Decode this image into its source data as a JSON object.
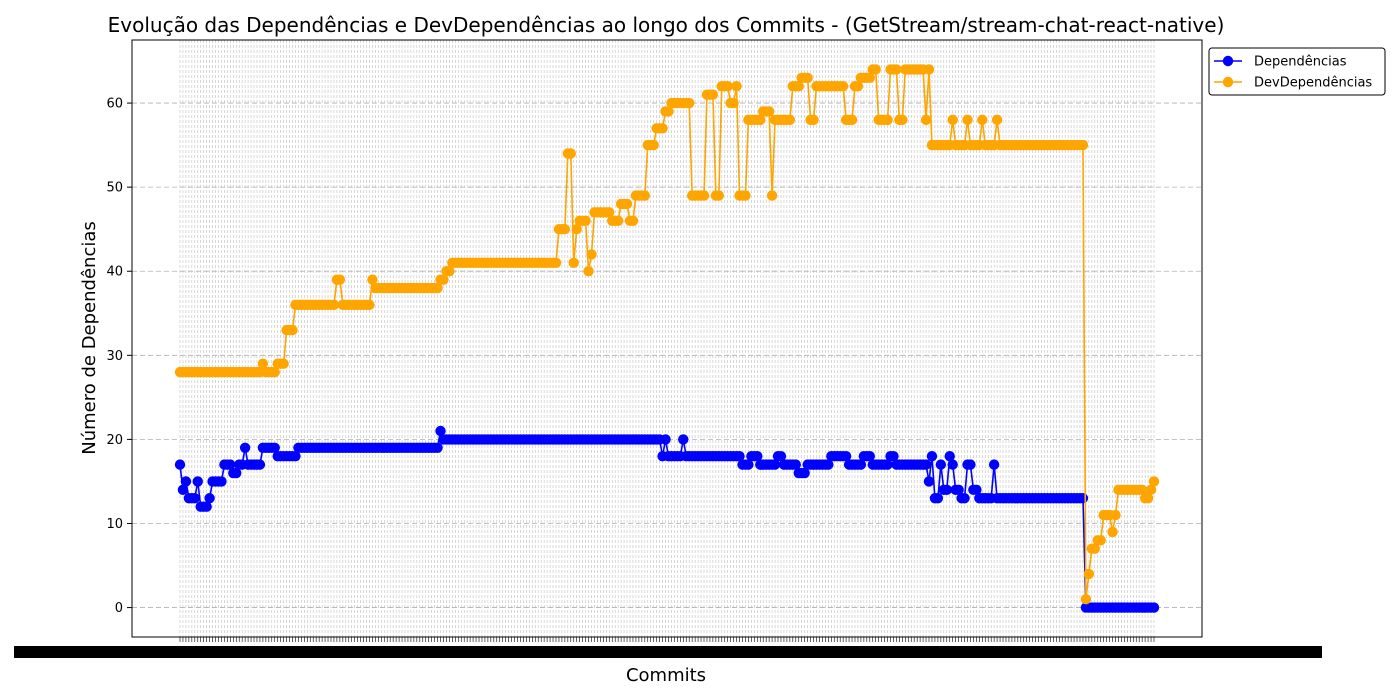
{
  "chart_data": {
    "type": "line",
    "title": "Evolução das Dependências e DevDependências ao longo dos Commits - (GetStream/stream-chat-react-native)",
    "xlabel": "Commits",
    "ylabel": "Número de Dependências",
    "ylim": [
      -3.5,
      67.5
    ],
    "yticks": [
      0,
      10,
      20,
      30,
      40,
      50,
      60
    ],
    "x_ticks_note": "",
    "grid": true,
    "legend_position": "upper-right",
    "colors": {
      "deps": "#0000ff",
      "devdeps": "#ffa500"
    },
    "n_commits": 330,
    "series": [
      {
        "name": "Dependências",
        "color": "#0000ff",
        "segments": [
          [
            0,
            17
          ],
          [
            1,
            14
          ],
          [
            2,
            15
          ],
          [
            3,
            13
          ],
          [
            6,
            15
          ],
          [
            7,
            12
          ],
          [
            10,
            13
          ],
          [
            11,
            15
          ],
          [
            15,
            17
          ],
          [
            18,
            16
          ],
          [
            20,
            17
          ],
          [
            22,
            19
          ],
          [
            23,
            17
          ],
          [
            28,
            19
          ],
          [
            33,
            18
          ],
          [
            40,
            19
          ],
          [
            88,
            21
          ],
          [
            89,
            20
          ],
          [
            163,
            18
          ],
          [
            164,
            20
          ],
          [
            165,
            18
          ],
          [
            170,
            20
          ],
          [
            171,
            18
          ],
          [
            190,
            17
          ],
          [
            193,
            18
          ],
          [
            196,
            17
          ],
          [
            202,
            18
          ],
          [
            204,
            17
          ],
          [
            209,
            16
          ],
          [
            212,
            17
          ],
          [
            220,
            18
          ],
          [
            226,
            17
          ],
          [
            231,
            18
          ],
          [
            234,
            17
          ],
          [
            240,
            18
          ],
          [
            242,
            17
          ],
          [
            254,
            18
          ],
          [
            257,
            17
          ],
          [
            260,
            18
          ],
          [
            266,
            17
          ],
          [
            268,
            18
          ],
          [
            253,
            15
          ],
          [
            255,
            13
          ],
          [
            257,
            17
          ],
          [
            258,
            14
          ],
          [
            261,
            17
          ],
          [
            262,
            14
          ],
          [
            264,
            13
          ],
          [
            266,
            17
          ],
          [
            268,
            14
          ],
          [
            270,
            13
          ],
          [
            275,
            17
          ],
          [
            276,
            13
          ],
          [
            306,
            0
          ],
          [
            329,
            0
          ]
        ]
      },
      {
        "name": "DevDependências",
        "color": "#ffa500",
        "segments": [
          [
            0,
            28
          ],
          [
            28,
            29
          ],
          [
            29,
            28
          ],
          [
            33,
            29
          ],
          [
            36,
            33
          ],
          [
            39,
            36
          ],
          [
            53,
            39
          ],
          [
            55,
            36
          ],
          [
            65,
            39
          ],
          [
            66,
            38
          ],
          [
            88,
            39
          ],
          [
            90,
            40
          ],
          [
            92,
            41
          ],
          [
            128,
            45
          ],
          [
            131,
            54
          ],
          [
            133,
            41
          ],
          [
            134,
            45
          ],
          [
            135,
            46
          ],
          [
            138,
            40
          ],
          [
            139,
            42
          ],
          [
            140,
            47
          ],
          [
            146,
            46
          ],
          [
            149,
            48
          ],
          [
            152,
            46
          ],
          [
            154,
            49
          ],
          [
            158,
            55
          ],
          [
            161,
            57
          ],
          [
            164,
            59
          ],
          [
            166,
            60
          ],
          [
            173,
            49
          ],
          [
            178,
            61
          ],
          [
            181,
            49
          ],
          [
            183,
            62
          ],
          [
            186,
            60
          ],
          [
            188,
            62
          ],
          [
            189,
            49
          ],
          [
            192,
            58
          ],
          [
            197,
            59
          ],
          [
            200,
            49
          ],
          [
            201,
            58
          ],
          [
            207,
            62
          ],
          [
            210,
            63
          ],
          [
            213,
            58
          ],
          [
            215,
            62
          ],
          [
            225,
            58
          ],
          [
            228,
            62
          ],
          [
            230,
            63
          ],
          [
            234,
            64
          ],
          [
            236,
            58
          ],
          [
            240,
            64
          ],
          [
            243,
            58
          ],
          [
            245,
            64
          ],
          [
            252,
            58
          ],
          [
            253,
            64
          ],
          [
            254,
            55
          ],
          [
            261,
            58
          ],
          [
            262,
            55
          ],
          [
            266,
            58
          ],
          [
            267,
            55
          ],
          [
            271,
            58
          ],
          [
            272,
            55
          ],
          [
            276,
            58
          ],
          [
            277,
            55
          ],
          [
            305,
            55
          ],
          [
            306,
            1
          ],
          [
            307,
            4
          ],
          [
            308,
            7
          ],
          [
            310,
            8
          ],
          [
            312,
            11
          ],
          [
            315,
            9
          ],
          [
            316,
            11
          ],
          [
            317,
            14
          ],
          [
            326,
            13
          ],
          [
            328,
            14
          ],
          [
            329,
            15
          ]
        ]
      }
    ]
  }
}
